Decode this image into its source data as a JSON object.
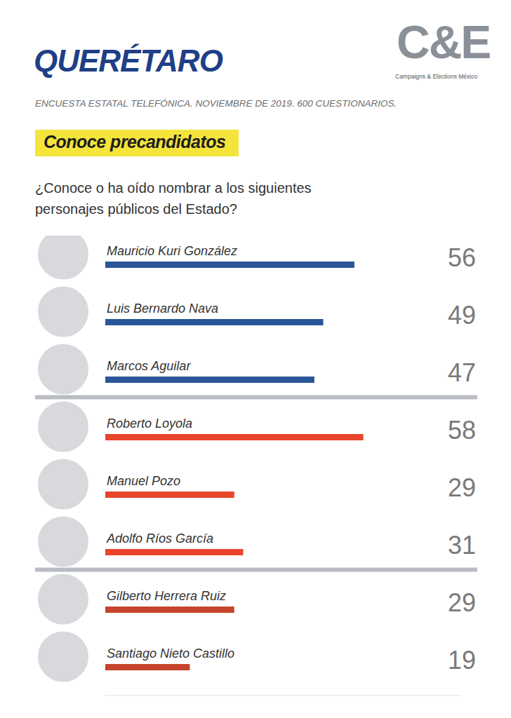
{
  "chart_data": {
    "type": "bar",
    "orientation": "horizontal",
    "title": "QUERÉTARO",
    "subtitle": "ENCUESTA ESTATAL TELEFÓNICA. NOVIEMBRE DE 2019. 600 CUESTIONARIOS.",
    "annotations": [
      "Conoce precandidatos",
      "¿Conoce o ha oído nombrar a los siguientes personajes públicos del Estado?",
      "C&E",
      "Campaigns & Elections México"
    ],
    "categories": [
      "Mauricio Kuri González",
      "Luis Bernardo Nava",
      "Marcos Aguilar",
      "Roberto Loyola",
      "Manuel Pozo",
      "Adolfo Ríos García",
      "Gilberto Herrera Ruiz",
      "Santiago Nieto Castillo"
    ],
    "values": [
      56,
      49,
      47,
      58,
      29,
      31,
      29,
      19
    ],
    "colors": [
      "#2a5599",
      "#2a5599",
      "#2a5599",
      "#e8452c",
      "#e8452c",
      "#e8452c",
      "#c4452b",
      "#c4452b"
    ],
    "xlim": [
      0,
      80
    ],
    "data_labels": true,
    "tick_labels": false,
    "grid": false
  }
}
